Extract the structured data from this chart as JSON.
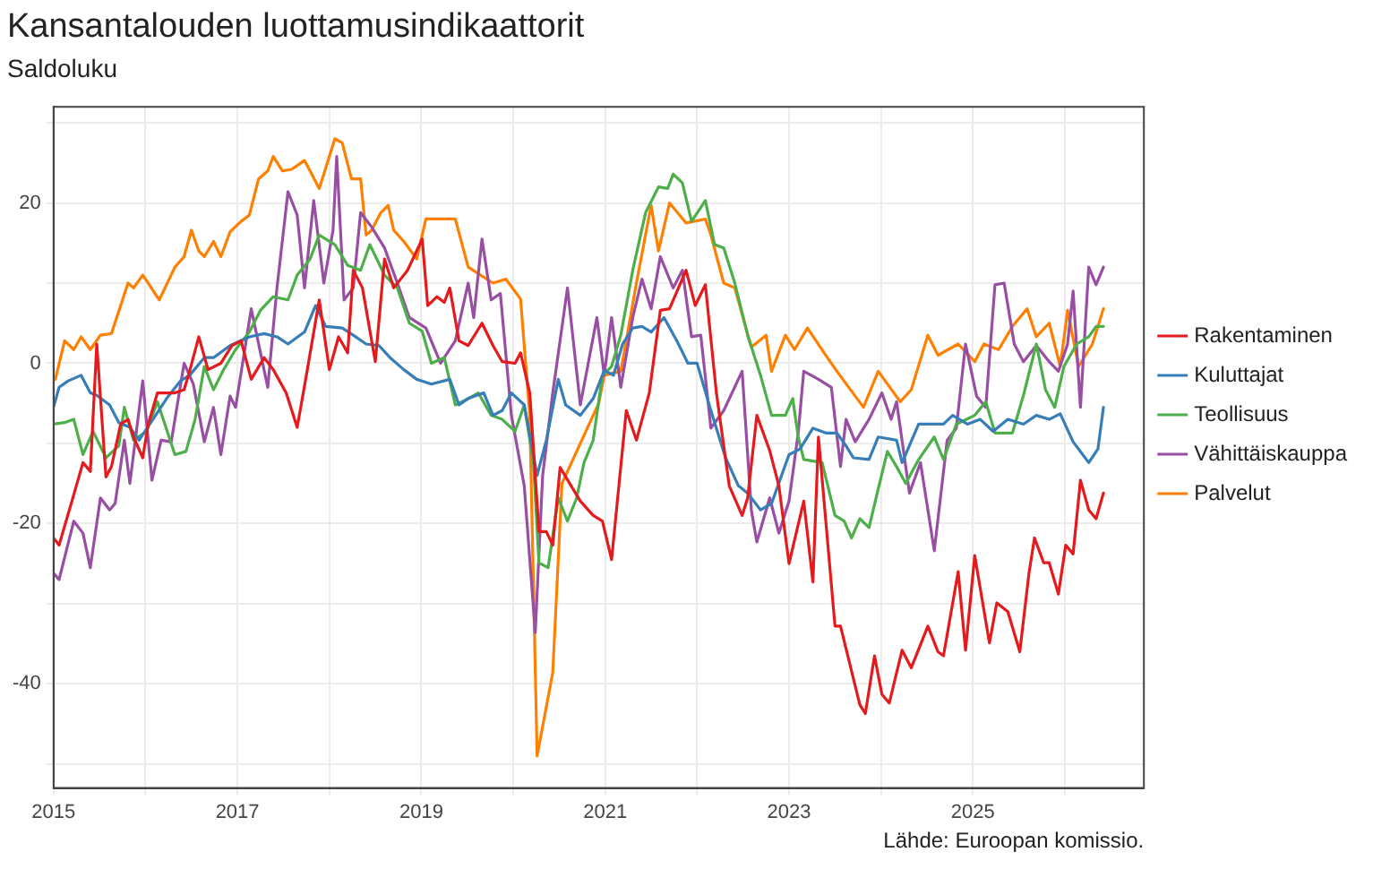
{
  "chart_data": {
    "type": "line",
    "title": "Kansantalouden luottamusindikaattorit",
    "subtitle": "Saldoluku",
    "annotations": [
      "Lähde: Euroopan komissio."
    ],
    "xlim": [
      2015,
      2026.86
    ],
    "xticks": [
      2015,
      {
        "value": 2016,
        "label": null
      },
      2017,
      {
        "value": 2018,
        "label": null
      },
      2019,
      {
        "value": 2020,
        "label": null
      },
      2021,
      {
        "value": 2022,
        "label": null
      },
      2023,
      {
        "value": 2024,
        "label": null
      },
      2025,
      {
        "value": 2026,
        "label": null
      }
    ],
    "ylim": [
      -53,
      32
    ],
    "yticks": [
      {
        "value": -50,
        "label": null
      },
      -40,
      {
        "value": -30,
        "label": null
      },
      -20,
      {
        "value": -10,
        "label": null
      },
      0,
      {
        "value": 10,
        "label": null
      },
      20,
      {
        "value": 30,
        "label": null
      }
    ],
    "grid": true,
    "legend": "right",
    "marker": "none",
    "line_style": "solid",
    "series": [
      {
        "name": "Rakentaminen",
        "color": "#e41a1c",
        "x": [
          2015.0,
          2015.06,
          2015.22,
          2015.32,
          2015.4,
          2015.47,
          2015.57,
          2015.63,
          2015.73,
          2015.81,
          2015.87,
          2015.97,
          2016.03,
          2016.13,
          2016.32,
          2016.42,
          2016.48,
          2016.58,
          2016.68,
          2016.82,
          2016.94,
          2017.04,
          2017.15,
          2017.29,
          2017.39,
          2017.53,
          2017.65,
          2017.75,
          2017.89,
          2018.0,
          2018.1,
          2018.2,
          2018.26,
          2018.36,
          2018.5,
          2018.6,
          2018.7,
          2018.85,
          2019.01,
          2019.07,
          2019.17,
          2019.25,
          2019.31,
          2019.41,
          2019.51,
          2019.66,
          2019.78,
          2019.88,
          2020.02,
          2020.08,
          2020.18,
          2020.28,
          2020.36,
          2020.43,
          2020.51,
          2020.63,
          2020.73,
          2020.87,
          2020.97,
          2021.07,
          2021.23,
          2021.34,
          2021.48,
          2021.6,
          2021.7,
          2021.88,
          2021.98,
          2022.09,
          2022.21,
          2022.35,
          2022.49,
          2022.55,
          2022.65,
          2022.79,
          2022.89,
          2023.0,
          2023.16,
          2023.26,
          2023.32,
          2023.5,
          2023.56,
          2023.77,
          2023.83,
          2023.93,
          2024.01,
          2024.09,
          2024.23,
          2024.33,
          2024.51,
          2024.62,
          2024.68,
          2024.84,
          2024.92,
          2025.02,
          2025.18,
          2025.26,
          2025.38,
          2025.51,
          2025.61,
          2025.67,
          2025.77,
          2025.83,
          2025.93,
          2026.01,
          2026.09,
          2026.17,
          2026.26,
          2026.34,
          2026.42
        ],
        "values": [
          -21.8,
          -22.7,
          -16.4,
          -12.4,
          -13.5,
          2.4,
          -14.2,
          -12.9,
          -7.6,
          -7,
          -9.2,
          -11.8,
          -7.6,
          -3.7,
          -3.7,
          -3.3,
          -1,
          3.3,
          -0.8,
          0,
          2.2,
          2.8,
          -2,
          0.7,
          -0.8,
          -3.7,
          -8,
          -1.5,
          7.9,
          -0.8,
          3.3,
          1.3,
          11.6,
          9.4,
          0.2,
          13,
          9.4,
          11.6,
          15.5,
          7.2,
          8.3,
          7.6,
          9.4,
          2.8,
          2.2,
          5,
          2.2,
          0.2,
          0,
          1.3,
          -3.7,
          -21,
          -21,
          -22.7,
          -13,
          -15.3,
          -17.2,
          -19,
          -19.7,
          -24.5,
          -5.9,
          -9.6,
          -3.7,
          6.6,
          6.8,
          11.6,
          7.2,
          9.8,
          -3.7,
          -15.3,
          -19,
          -16.8,
          -6.5,
          -10.9,
          -15.3,
          -25,
          -17.2,
          -27.3,
          -9.2,
          -32.8,
          -32.8,
          -42.6,
          -43.7,
          -36.5,
          -41.3,
          -42.4,
          -35.8,
          -38,
          -32.8,
          -36,
          -36.5,
          -26,
          -35.8,
          -24,
          -34.9,
          -29.9,
          -31,
          -36,
          -26.2,
          -21.8,
          -24.9,
          -24.9,
          -28.8,
          -22.7,
          -23.8,
          -14.6,
          -18.3,
          -19.4,
          -16.2
        ]
      },
      {
        "name": "Kuluttajat",
        "color": "#377eb8",
        "x": [
          2015.0,
          2015.06,
          2015.16,
          2015.3,
          2015.4,
          2015.47,
          2015.61,
          2015.71,
          2015.83,
          2015.93,
          2016.11,
          2016.23,
          2016.38,
          2016.48,
          2016.64,
          2016.74,
          2016.92,
          2017.13,
          2017.29,
          2017.43,
          2017.55,
          2017.73,
          2017.85,
          2017.96,
          2018.14,
          2018.26,
          2018.4,
          2018.54,
          2018.66,
          2018.81,
          2018.95,
          2019.11,
          2019.31,
          2019.41,
          2019.51,
          2019.68,
          2019.78,
          2019.88,
          2019.98,
          2020.12,
          2020.26,
          2020.36,
          2020.49,
          2020.57,
          2020.73,
          2020.87,
          2020.99,
          2021.09,
          2021.19,
          2021.3,
          2021.4,
          2021.5,
          2021.64,
          2021.78,
          2021.9,
          2022.0,
          2022.15,
          2022.31,
          2022.45,
          2022.55,
          2022.69,
          2022.81,
          2023.0,
          2023.12,
          2023.26,
          2023.4,
          2023.52,
          2023.62,
          2023.7,
          2023.87,
          2023.97,
          2024.17,
          2024.23,
          2024.41,
          2024.58,
          2024.68,
          2024.78,
          2024.94,
          2025.08,
          2025.22,
          2025.38,
          2025.55,
          2025.69,
          2025.83,
          2025.95,
          2026.09,
          2026.26,
          2026.36,
          2026.42
        ],
        "values": [
          -5.5,
          -3,
          -2.2,
          -1.5,
          -3.7,
          -4,
          -5.2,
          -7.4,
          -8,
          -9.6,
          -6.5,
          -4.4,
          -2.2,
          -1.5,
          0.7,
          0.7,
          2.2,
          3.3,
          3.7,
          3.3,
          2.4,
          3.9,
          7.2,
          4.6,
          4.4,
          3.5,
          2.4,
          2.2,
          0.7,
          -0.8,
          -2,
          -2.6,
          -2,
          -5.2,
          -4.4,
          -3.7,
          -6.5,
          -5.9,
          -3.7,
          -5.2,
          -14,
          -9.6,
          -2,
          -5.2,
          -6.5,
          -4.4,
          -0.9,
          -1.5,
          2.4,
          4.4,
          4.6,
          3.9,
          5.7,
          2.8,
          0,
          0,
          -5.9,
          -11.8,
          -15.3,
          -16.2,
          -18.3,
          -17.5,
          -11.4,
          -10.7,
          -8.1,
          -8.7,
          -8.7,
          -10.3,
          -11.8,
          -12,
          -9.2,
          -9.6,
          -12.4,
          -7.6,
          -7.6,
          -7.6,
          -6.5,
          -7.6,
          -7,
          -8.5,
          -7,
          -7.6,
          -6.5,
          -7,
          -6.3,
          -9.8,
          -12.4,
          -10.7,
          -5.5
        ]
      },
      {
        "name": "Teollisuus",
        "color": "#4daf4a",
        "x": [
          2015.0,
          2015.12,
          2015.22,
          2015.32,
          2015.43,
          2015.57,
          2015.71,
          2015.77,
          2015.87,
          2016.01,
          2016.13,
          2016.32,
          2016.44,
          2016.54,
          2016.64,
          2016.74,
          2016.84,
          2016.98,
          2017.13,
          2017.25,
          2017.39,
          2017.55,
          2017.65,
          2017.79,
          2017.89,
          2018.06,
          2018.2,
          2018.34,
          2018.44,
          2018.6,
          2018.74,
          2018.87,
          2019.01,
          2019.11,
          2019.25,
          2019.37,
          2019.51,
          2019.62,
          2019.76,
          2019.88,
          2020.02,
          2020.12,
          2020.22,
          2020.28,
          2020.38,
          2020.49,
          2020.59,
          2020.69,
          2020.77,
          2020.87,
          2020.97,
          2021.07,
          2021.17,
          2021.3,
          2021.44,
          2021.58,
          2021.68,
          2021.74,
          2021.84,
          2021.94,
          2022.09,
          2022.19,
          2022.29,
          2022.41,
          2022.55,
          2022.69,
          2022.81,
          2022.96,
          2023.04,
          2023.1,
          2023.16,
          2023.36,
          2023.5,
          2023.6,
          2023.68,
          2023.77,
          2023.87,
          2023.97,
          2024.07,
          2024.17,
          2024.27,
          2024.41,
          2024.58,
          2024.68,
          2024.82,
          2025.02,
          2025.14,
          2025.24,
          2025.43,
          2025.55,
          2025.69,
          2025.79,
          2025.89,
          2025.99,
          2026.13,
          2026.26,
          2026.34,
          2026.42
        ],
        "values": [
          -7.6,
          -7.4,
          -7,
          -11.4,
          -8.5,
          -11.8,
          -10.3,
          -5.5,
          -9.6,
          -8.5,
          -4.8,
          -11.4,
          -11,
          -7,
          -0.4,
          -3.3,
          -1,
          1.7,
          3.9,
          6.6,
          8.3,
          7.9,
          11,
          13,
          16,
          14.8,
          12.2,
          11.6,
          14.8,
          11,
          9.4,
          5,
          4,
          0,
          0.7,
          -5.2,
          -4.4,
          -3.7,
          -6.5,
          -7,
          -8.5,
          -5.2,
          -12.4,
          -24.9,
          -25.5,
          -16.8,
          -19.7,
          -16.8,
          -12.4,
          -9.6,
          -1.5,
          -0.4,
          3.5,
          11.6,
          18.8,
          22,
          21.8,
          23.6,
          22.5,
          17.7,
          20.3,
          14.8,
          14.4,
          10,
          3.5,
          -1.5,
          -6.5,
          -6.5,
          -4.4,
          -9.2,
          -12,
          -12.4,
          -19,
          -19.7,
          -21.8,
          -19.4,
          -20.5,
          -15.7,
          -11,
          -12.9,
          -15,
          -12,
          -9.2,
          -12,
          -7.6,
          -6.5,
          -4.8,
          -8.7,
          -8.7,
          -4,
          2.4,
          -3.3,
          -5.5,
          -0.4,
          2.4,
          3.3,
          4.6,
          4.6
        ]
      },
      {
        "name": "Vähittäiskauppa",
        "color": "#984ea3",
        "x": [
          2015.0,
          2015.06,
          2015.22,
          2015.32,
          2015.4,
          2015.51,
          2015.61,
          2015.67,
          2015.77,
          2015.83,
          2015.97,
          2016.07,
          2016.17,
          2016.28,
          2016.42,
          2016.52,
          2016.64,
          2016.74,
          2016.82,
          2016.92,
          2016.98,
          2017.15,
          2017.33,
          2017.43,
          2017.55,
          2017.65,
          2017.73,
          2017.83,
          2017.94,
          2018.04,
          2018.08,
          2018.16,
          2018.26,
          2018.34,
          2018.46,
          2018.6,
          2018.74,
          2018.87,
          2019.05,
          2019.21,
          2019.37,
          2019.51,
          2019.57,
          2019.66,
          2019.76,
          2019.86,
          2019.98,
          2020.12,
          2020.24,
          2020.32,
          2020.43,
          2020.59,
          2020.73,
          2020.91,
          2020.99,
          2021.07,
          2021.17,
          2021.3,
          2021.4,
          2021.5,
          2021.6,
          2021.74,
          2021.84,
          2021.94,
          2022.04,
          2022.15,
          2022.29,
          2022.49,
          2022.59,
          2022.65,
          2022.79,
          2022.89,
          2023.0,
          2023.1,
          2023.16,
          2023.32,
          2023.46,
          2023.56,
          2023.62,
          2023.72,
          2023.87,
          2024.01,
          2024.11,
          2024.17,
          2024.31,
          2024.43,
          2024.58,
          2024.72,
          2024.82,
          2024.92,
          2025.04,
          2025.14,
          2025.24,
          2025.34,
          2025.45,
          2025.55,
          2025.69,
          2025.83,
          2025.93,
          2026.03,
          2026.09,
          2026.17,
          2026.26,
          2026.34,
          2026.42
        ],
        "values": [
          -26.2,
          -27,
          -19.7,
          -21.2,
          -25.5,
          -16.8,
          -18.3,
          -17.5,
          -9.6,
          -15,
          -2.2,
          -14.6,
          -9.6,
          -9.8,
          0,
          -2.6,
          -9.8,
          -5.5,
          -11.4,
          -4.1,
          -5.5,
          6.8,
          -3,
          9.4,
          21.4,
          18.5,
          9.4,
          20.3,
          10,
          16.6,
          25.8,
          7.9,
          9.4,
          18.8,
          17,
          14.4,
          10,
          5.7,
          4.4,
          0,
          2.8,
          10,
          5.7,
          15.5,
          7.9,
          8.7,
          -6.5,
          -15.3,
          -33.6,
          -14,
          -3.7,
          9.4,
          -5.2,
          5.7,
          -1.5,
          5.7,
          -3,
          5.7,
          10.5,
          6.8,
          13.3,
          9.4,
          11.6,
          3.3,
          3.5,
          -8.1,
          -5.9,
          -1,
          -18.3,
          -22.3,
          -16.8,
          -21.2,
          -17.2,
          -8.7,
          -1,
          -2,
          -3,
          -12.9,
          -7,
          -9.8,
          -7,
          -3.7,
          -7,
          -4.8,
          -16.2,
          -12.4,
          -23.4,
          -9.6,
          -8.1,
          2.4,
          -4.1,
          -5.5,
          9.8,
          10,
          2.4,
          0.2,
          2.2,
          0.2,
          -1,
          2.4,
          9,
          -5.5,
          12,
          9.8,
          12
        ]
      },
      {
        "name": "Palvelut",
        "color": "#ff7f00",
        "x": [
          2015.02,
          2015.12,
          2015.22,
          2015.3,
          2015.4,
          2015.51,
          2015.63,
          2015.81,
          2015.87,
          2015.97,
          2016.03,
          2016.15,
          2016.32,
          2016.42,
          2016.5,
          2016.58,
          2016.64,
          2016.74,
          2016.82,
          2016.92,
          2017.04,
          2017.13,
          2017.23,
          2017.33,
          2017.39,
          2017.49,
          2017.59,
          2017.73,
          2017.79,
          2017.89,
          2018.06,
          2018.14,
          2018.24,
          2018.34,
          2018.4,
          2018.46,
          2018.56,
          2018.64,
          2018.7,
          2018.81,
          2018.95,
          2019.05,
          2019.37,
          2019.51,
          2019.78,
          2019.92,
          2020.08,
          2020.18,
          2020.26,
          2020.43,
          2020.53,
          2020.73,
          2020.93,
          2020.99,
          2021.17,
          2021.34,
          2021.5,
          2021.58,
          2021.7,
          2021.88,
          2022.09,
          2022.15,
          2022.29,
          2022.41,
          2022.59,
          2022.75,
          2022.81,
          2022.96,
          2023.06,
          2023.2,
          2023.4,
          2023.52,
          2023.81,
          2023.97,
          2024.21,
          2024.33,
          2024.51,
          2024.62,
          2024.84,
          2025.02,
          2025.12,
          2025.28,
          2025.43,
          2025.59,
          2025.69,
          2025.83,
          2025.95,
          2026.03,
          2026.15,
          2026.3,
          2026.42
        ],
        "values": [
          -2,
          2.8,
          1.7,
          3.3,
          1.7,
          3.5,
          3.7,
          10,
          9.4,
          11,
          10,
          7.9,
          12,
          13.3,
          16.6,
          14,
          13.3,
          15.2,
          13.3,
          16.4,
          17.7,
          18.5,
          23,
          24,
          25.8,
          24,
          24.2,
          25.3,
          24,
          21.8,
          28,
          27.5,
          23,
          23,
          16,
          16.6,
          18.8,
          19.7,
          16.6,
          15.2,
          13,
          18,
          18,
          12,
          10,
          10.5,
          8,
          -6.5,
          -49,
          -38.6,
          -15,
          -10,
          -5,
          -1.5,
          -1,
          10,
          19.7,
          14,
          20,
          17.5,
          18,
          16,
          10,
          9.4,
          2,
          3.5,
          -1,
          3.5,
          1.7,
          4.4,
          1,
          -1,
          -5.5,
          -1,
          -4.8,
          -3.3,
          3.5,
          1,
          2.4,
          0.2,
          2.4,
          1.7,
          4.6,
          6.8,
          3.3,
          5,
          -0.4,
          6.6,
          -0.4,
          2.4,
          6.8
        ]
      }
    ]
  }
}
